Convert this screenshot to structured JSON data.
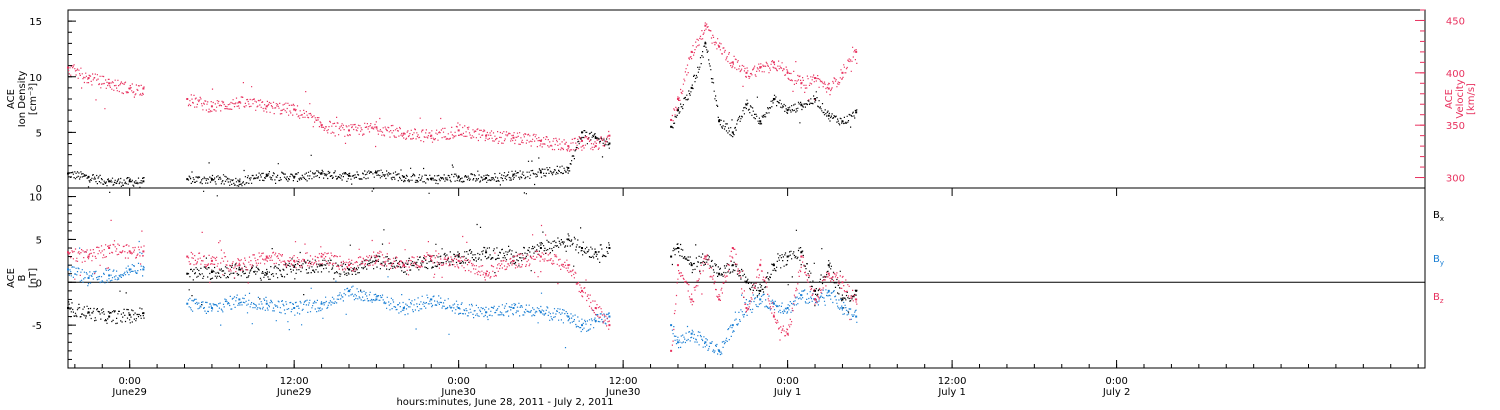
{
  "chart_data": [
    {
      "type": "scatter",
      "panel": "top",
      "left_axis": {
        "label_lines": [
          "ACE",
          "Ion Density",
          "[cm⁻³]"
        ],
        "ylim": [
          0,
          16
        ],
        "ticks": [
          0,
          5,
          10,
          15
        ],
        "color": "#000000"
      },
      "right_axis": {
        "label_lines": [
          "ACE",
          "Velocity",
          "[km/s]"
        ],
        "ylim": [
          290,
          460
        ],
        "ticks": [
          300,
          350,
          400,
          450
        ],
        "color": "#e8325f"
      },
      "x_range_hours": [
        -4.5,
        94.5
      ],
      "data_gaps_hours": [
        [
          1.0,
          4.2
        ],
        [
          35.0,
          39.5
        ]
      ],
      "series": [
        {
          "axis": "left",
          "color": "#000000",
          "x": [
            -4.5,
            -3,
            -1.5,
            0,
            1,
            4.2,
            6,
            8,
            10,
            12,
            14,
            16,
            18,
            20,
            22,
            24,
            26,
            28,
            30,
            32,
            33,
            34,
            35,
            39.5,
            40,
            41,
            42,
            43,
            44,
            45,
            46,
            47,
            48,
            49,
            50,
            51,
            52,
            53
          ],
          "y": [
            1.3,
            1.0,
            0.6,
            0.6,
            0.6,
            0.8,
            0.8,
            0.6,
            1.2,
            1.0,
            1.3,
            1.1,
            1.4,
            1.0,
            0.8,
            1.0,
            0.9,
            1.2,
            1.4,
            1.8,
            5.0,
            4.5,
            4.0,
            5.5,
            7.0,
            9.0,
            13.0,
            6.0,
            5.0,
            7.5,
            6.0,
            8.0,
            7.0,
            7.5,
            8.0,
            6.5,
            6.0,
            6.8
          ]
        },
        {
          "axis": "right",
          "color": "#e8325f",
          "x": [
            -4.5,
            -3,
            -1.5,
            0,
            1,
            4.2,
            6,
            8,
            10,
            12,
            14,
            16,
            18,
            20,
            22,
            24,
            26,
            28,
            30,
            32,
            33,
            34,
            35,
            39.5,
            40,
            41,
            42,
            43,
            44,
            45,
            46,
            47,
            48,
            49,
            50,
            51,
            52,
            53
          ],
          "y": [
            405,
            395,
            390,
            385,
            385,
            375,
            368,
            372,
            368,
            365,
            350,
            345,
            348,
            342,
            340,
            345,
            340,
            338,
            335,
            330,
            335,
            330,
            340,
            355,
            375,
            420,
            445,
            425,
            410,
            400,
            405,
            410,
            400,
            390,
            395,
            385,
            400,
            420
          ]
        }
      ]
    },
    {
      "type": "scatter",
      "panel": "bottom",
      "left_axis": {
        "label_lines": [
          "ACE",
          "B",
          "[nT]"
        ],
        "ylim": [
          -10,
          11
        ],
        "ticks": [
          -5,
          0,
          5,
          10
        ],
        "color": "#000000"
      },
      "x_range_hours": [
        -4.5,
        94.5
      ],
      "data_gaps_hours": [
        [
          1.0,
          4.2
        ],
        [
          35.0,
          39.5
        ]
      ],
      "series": [
        {
          "name": "Bx",
          "color": "#000000",
          "x": [
            -4.5,
            -3,
            -1.5,
            0,
            1,
            4.2,
            6,
            8,
            10,
            12,
            14,
            16,
            18,
            20,
            22,
            24,
            26,
            28,
            30,
            32,
            33,
            34,
            35,
            39.5,
            40,
            41,
            42,
            43,
            44,
            45,
            46,
            47,
            48,
            49,
            50,
            51,
            52,
            53
          ],
          "y": [
            -3.0,
            -3.5,
            -4.0,
            -3.8,
            -3.6,
            1.0,
            1.2,
            1.5,
            1.0,
            1.8,
            2.0,
            1.5,
            2.5,
            2.0,
            2.5,
            3.0,
            3.5,
            3.0,
            4.0,
            5.0,
            4.0,
            3.5,
            4.0,
            3.0,
            4.0,
            2.0,
            3.0,
            1.0,
            2.0,
            0.0,
            -1.0,
            2.0,
            3.0,
            3.5,
            -1.0,
            2.0,
            -2.0,
            -1.0
          ]
        },
        {
          "name": "By",
          "color": "#1a7fd4",
          "x": [
            -4.5,
            -3,
            -1.5,
            0,
            1,
            4.2,
            6,
            8,
            10,
            12,
            14,
            16,
            18,
            20,
            22,
            24,
            26,
            28,
            30,
            32,
            33,
            34,
            35,
            39.5,
            40,
            41,
            42,
            43,
            44,
            45,
            46,
            47,
            48,
            49,
            50,
            51,
            52,
            53
          ],
          "y": [
            1.5,
            0.5,
            0.8,
            1.5,
            1.5,
            -2.5,
            -3.0,
            -2.0,
            -2.5,
            -3.0,
            -2.5,
            -1.0,
            -2.0,
            -3.0,
            -2.0,
            -3.0,
            -3.5,
            -3.0,
            -3.5,
            -4.0,
            -5.0,
            -4.5,
            -4.0,
            -5.0,
            -7.0,
            -6.0,
            -7.0,
            -8.0,
            -5.0,
            -3.0,
            -2.0,
            -2.5,
            -3.0,
            -1.5,
            -2.0,
            -1.0,
            -3.0,
            -4.0
          ]
        },
        {
          "name": "Bz",
          "color": "#e8325f",
          "x": [
            -4.5,
            -3,
            -1.5,
            0,
            1,
            4.2,
            6,
            8,
            10,
            12,
            14,
            16,
            18,
            20,
            22,
            24,
            26,
            28,
            30,
            32,
            33,
            34,
            35,
            39.5,
            40,
            41,
            42,
            43,
            44,
            45,
            46,
            47,
            48,
            49,
            50,
            51,
            52,
            53
          ],
          "y": [
            3.5,
            3.0,
            4.0,
            3.6,
            3.6,
            3.0,
            2.5,
            2.0,
            3.0,
            2.5,
            3.0,
            2.0,
            3.0,
            2.0,
            3.0,
            2.5,
            1.0,
            2.5,
            3.0,
            2.0,
            -1.0,
            -3.0,
            -5.0,
            -8.0,
            2.0,
            -2.0,
            3.0,
            -2.0,
            4.0,
            -3.0,
            2.0,
            -4.0,
            -6.0,
            3.0,
            -2.0,
            1.0,
            0.0,
            -2.0
          ]
        }
      ],
      "legend_position": "right",
      "legend": [
        {
          "label": "B",
          "sub": "x",
          "color": "#000000"
        },
        {
          "label": "B",
          "sub": "y",
          "color": "#1a7fd4"
        },
        {
          "label": "B",
          "sub": "z",
          "color": "#e8325f"
        }
      ]
    }
  ],
  "x_axis": {
    "ticks": [
      {
        "hour": 0,
        "time": "0:00",
        "date": "June29"
      },
      {
        "hour": 12,
        "time": "12:00",
        "date": "June29"
      },
      {
        "hour": 24,
        "time": "0:00",
        "date": "June30"
      },
      {
        "hour": 36,
        "time": "12:00",
        "date": "June30"
      },
      {
        "hour": 48,
        "time": "0:00",
        "date": "July 1"
      },
      {
        "hour": 60,
        "time": "12:00",
        "date": "July 1"
      },
      {
        "hour": 72,
        "time": "0:00",
        "date": "July 2"
      }
    ],
    "label": "hours:minutes, June 28, 2011 - July  2, 2011"
  }
}
